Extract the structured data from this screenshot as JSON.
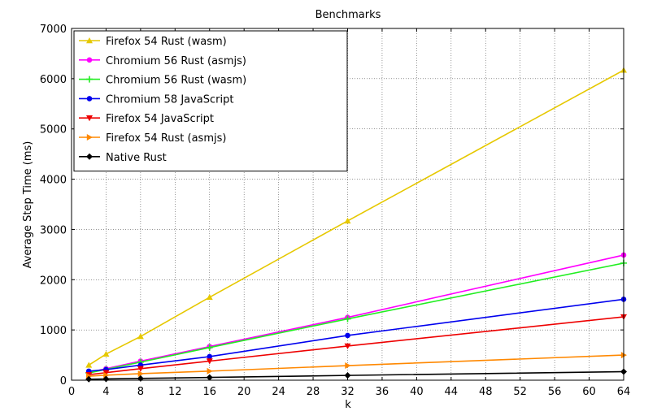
{
  "chart_data": {
    "type": "line",
    "title": "Benchmarks",
    "xlabel": "k",
    "ylabel": "Average Step Time (ms)",
    "xlim": [
      0,
      64
    ],
    "ylim": [
      0,
      7000
    ],
    "xticks": [
      0,
      4,
      8,
      12,
      16,
      20,
      24,
      28,
      32,
      36,
      40,
      44,
      48,
      52,
      56,
      60,
      64
    ],
    "yticks": [
      0,
      1000,
      2000,
      3000,
      4000,
      5000,
      6000,
      7000
    ],
    "grid": true,
    "legend_position": "top-left",
    "x": [
      2,
      4,
      8,
      16,
      32,
      64
    ],
    "series": [
      {
        "name": "Firefox 54 Rust (wasm)",
        "color": "#e6c800",
        "marker": "triangle-up",
        "values": [
          300,
          520,
          870,
          1650,
          3170,
          6170
        ]
      },
      {
        "name": "Chromium 56 Rust (asmjs)",
        "color": "#ff00ff",
        "marker": "circle",
        "values": [
          150,
          230,
          380,
          670,
          1250,
          2490
        ]
      },
      {
        "name": "Chromium 56 Rust (wasm)",
        "color": "#22ee22",
        "marker": "plus",
        "values": [
          145,
          215,
          360,
          650,
          1220,
          2330
        ]
      },
      {
        "name": "Chromium 58 JavaScript",
        "color": "#0000ee",
        "marker": "circle",
        "values": [
          180,
          210,
          300,
          470,
          890,
          1610
        ]
      },
      {
        "name": "Firefox 54 JavaScript",
        "color": "#ee0000",
        "marker": "triangle-down",
        "values": [
          110,
          150,
          230,
          380,
          680,
          1260
        ]
      },
      {
        "name": "Firefox 54 Rust (asmjs)",
        "color": "#ff8800",
        "marker": "triangle-right",
        "values": [
          80,
          100,
          130,
          180,
          290,
          500
        ]
      },
      {
        "name": "Native Rust",
        "color": "#000000",
        "marker": "diamond",
        "values": [
          20,
          25,
          35,
          55,
          95,
          170
        ]
      }
    ]
  }
}
